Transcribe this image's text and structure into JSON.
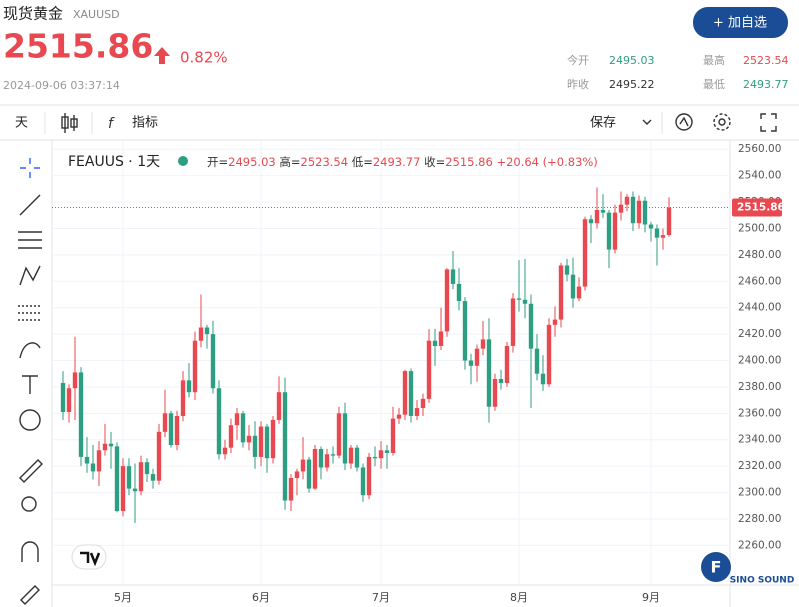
{
  "header": {
    "title": "现货黄金",
    "symbol": "XAUUSD",
    "price": 2515.86,
    "change": "0.82%",
    "time": "2024-09-06 03:37:14",
    "button": "+ 加自选",
    "stats": [
      {
        "label": "今开",
        "value": "2495.03"
      },
      {
        "label": "最高",
        "value": "2523.54"
      },
      {
        "label": "昨收",
        "value": "2495.22"
      },
      {
        "label": "最低",
        "value": "2493.77"
      }
    ]
  },
  "toolbar": {
    "interval": "天",
    "indicators": "指标",
    "save": "保存"
  },
  "chart_data": {
    "type": "candlestick",
    "title": "FEAUUS · 1天",
    "legend_labels": {
      "open": "开=",
      "high": "高=",
      "low": "低=",
      "close": "收="
    },
    "legend_change": "+20.64",
    "legend_change_pct": "(+0.83%)",
    "up_color": "#e8484f",
    "down_color": "#2e9e82",
    "grid": true,
    "watermark": "SINO SOUND",
    "categories": [
      null,
      null,
      null,
      null,
      null,
      null,
      null,
      null,
      null,
      null,
      "5月",
      null,
      null,
      null,
      null,
      null,
      null,
      null,
      null,
      null,
      null,
      null,
      null,
      null,
      null,
      null,
      null,
      null,
      null,
      null,
      null,
      null,
      null,
      "6月",
      null,
      null,
      null,
      null,
      null,
      null,
      null,
      null,
      null,
      null,
      null,
      null,
      null,
      null,
      null,
      null,
      null,
      null,
      null,
      "7月",
      null,
      null,
      null,
      null,
      null,
      null,
      null,
      null,
      null,
      null,
      null,
      null,
      null,
      null,
      null,
      null,
      null,
      null,
      null,
      null,
      null,
      null,
      "8月",
      null,
      null,
      null,
      null,
      null,
      null,
      null,
      null,
      null,
      null,
      null,
      null,
      null,
      null,
      null,
      null,
      null,
      null,
      null,
      null,
      null,
      "9月",
      null,
      null,
      null
    ],
    "open": [
      2383,
      2361,
      2379,
      2391,
      2327,
      2322,
      2316,
      2332,
      2337,
      2335,
      2286,
      2320,
      2303,
      2301,
      2323,
      2314,
      2309,
      2346,
      2360,
      2336,
      2358,
      2385,
      2376,
      2415,
      2425,
      2420,
      2379,
      2329,
      2334,
      2351,
      2360,
      2338,
      2343,
      2327,
      2350,
      2326,
      2355,
      2376,
      2294,
      2311,
      2316,
      2325,
      2303,
      2333,
      2319,
      2329,
      2328,
      2360,
      2322,
      2334,
      2319,
      2298,
      2327,
      2326,
      2332,
      2330,
      2356,
      2359,
      2392,
      2358,
      2364,
      2371,
      2415,
      2411,
      2422,
      2469,
      2458,
      2445,
      2400,
      2396,
      2409,
      2416,
      2365,
      2386,
      2383,
      2411,
      2447,
      2446,
      2443,
      2409,
      2390,
      2382,
      2427,
      2431,
      2472,
      2465,
      2447,
      2456,
      2507,
      2504,
      2514,
      2512,
      2484,
      2512,
      2518,
      2524,
      2504,
      2521,
      2503,
      2500,
      2493,
      2495.03
    ],
    "high": [
      2392,
      2382,
      2418,
      2395,
      2342,
      2336,
      2339,
      2352,
      2346,
      2338,
      2326,
      2326,
      2322,
      2328,
      2326,
      2318,
      2352,
      2378,
      2362,
      2362,
      2392,
      2398,
      2422,
      2450,
      2427,
      2430,
      2385,
      2340,
      2356,
      2364,
      2362,
      2351,
      2354,
      2354,
      2352,
      2358,
      2388,
      2387,
      2314,
      2318,
      2342,
      2327,
      2336,
      2335,
      2333,
      2335,
      2365,
      2368,
      2336,
      2336,
      2322,
      2330,
      2335,
      2339,
      2336,
      2365,
      2364,
      2393,
      2394,
      2370,
      2375,
      2424,
      2424,
      2440,
      2470,
      2483,
      2470,
      2448,
      2405,
      2412,
      2430,
      2432,
      2390,
      2393,
      2414,
      2451,
      2476,
      2477,
      2450,
      2420,
      2404,
      2432,
      2441,
      2474,
      2477,
      2478,
      2463,
      2509,
      2510,
      2531,
      2526,
      2514,
      2518,
      2528,
      2526,
      2528,
      2525,
      2524,
      2505,
      2503,
      2500,
      2523.54
    ],
    "low": [
      2355,
      2353,
      2355,
      2320,
      2315,
      2310,
      2305,
      2328,
      2318,
      2285,
      2282,
      2298,
      2277,
      2298,
      2308,
      2303,
      2306,
      2342,
      2334,
      2332,
      2354,
      2372,
      2370,
      2410,
      2409,
      2375,
      2325,
      2325,
      2330,
      2340,
      2334,
      2332,
      2318,
      2320,
      2315,
      2322,
      2352,
      2287,
      2286,
      2298,
      2310,
      2300,
      2302,
      2310,
      2316,
      2322,
      2326,
      2317,
      2318,
      2316,
      2293,
      2295,
      2320,
      2318,
      2318,
      2328,
      2352,
      2355,
      2353,
      2355,
      2358,
      2368,
      2396,
      2408,
      2418,
      2454,
      2438,
      2393,
      2382,
      2384,
      2404,
      2353,
      2362,
      2378,
      2380,
      2406,
      2437,
      2432,
      2364,
      2385,
      2377,
      2380,
      2418,
      2425,
      2460,
      2440,
      2445,
      2453,
      2489,
      2500,
      2508,
      2470,
      2481,
      2506,
      2513,
      2498,
      2500,
      2497,
      2490,
      2472,
      2484,
      2493.77
    ],
    "close": [
      2361,
      2379,
      2391,
      2327,
      2322,
      2316,
      2332,
      2337,
      2335,
      2286,
      2320,
      2303,
      2301,
      2323,
      2314,
      2309,
      2346,
      2360,
      2336,
      2358,
      2385,
      2376,
      2415,
      2425,
      2420,
      2379,
      2329,
      2334,
      2351,
      2360,
      2338,
      2343,
      2327,
      2350,
      2326,
      2355,
      2376,
      2294,
      2311,
      2316,
      2325,
      2303,
      2333,
      2319,
      2329,
      2328,
      2360,
      2322,
      2334,
      2319,
      2298,
      2327,
      2326,
      2332,
      2330,
      2356,
      2359,
      2392,
      2358,
      2364,
      2371,
      2415,
      2411,
      2422,
      2469,
      2458,
      2445,
      2400,
      2396,
      2409,
      2416,
      2365,
      2386,
      2383,
      2411,
      2447,
      2446,
      2443,
      2409,
      2390,
      2382,
      2427,
      2431,
      2472,
      2465,
      2447,
      2456,
      2507,
      2504,
      2514,
      2512,
      2484,
      2512,
      2518,
      2524,
      2504,
      2521,
      2503,
      2500,
      2493,
      2495,
      2515.86
    ],
    "ylim": [
      2230,
      2567
    ],
    "yticks": [
      {
        "value": 2260,
        "label": "2260.00"
      },
      {
        "value": 2280,
        "label": "2280.00"
      },
      {
        "value": 2300,
        "label": "2300.00"
      },
      {
        "value": 2320,
        "label": "2320.00"
      },
      {
        "value": 2340,
        "label": "2340.00"
      },
      {
        "value": 2360,
        "label": "2360.00"
      },
      {
        "value": 2380,
        "label": "2380.00"
      },
      {
        "value": 2400,
        "label": "2400.00"
      },
      {
        "value": 2420,
        "label": "2420.00"
      },
      {
        "value": 2440,
        "label": "2440.00"
      },
      {
        "value": 2460,
        "label": "2460.00"
      },
      {
        "value": 2480,
        "label": "2480.00"
      },
      {
        "value": 2500,
        "label": "2500.00"
      },
      {
        "value": 2520,
        "label": "2520.00"
      },
      {
        "value": 2540,
        "label": "2540.00"
      },
      {
        "value": 2560,
        "label": "2560.00"
      }
    ]
  }
}
